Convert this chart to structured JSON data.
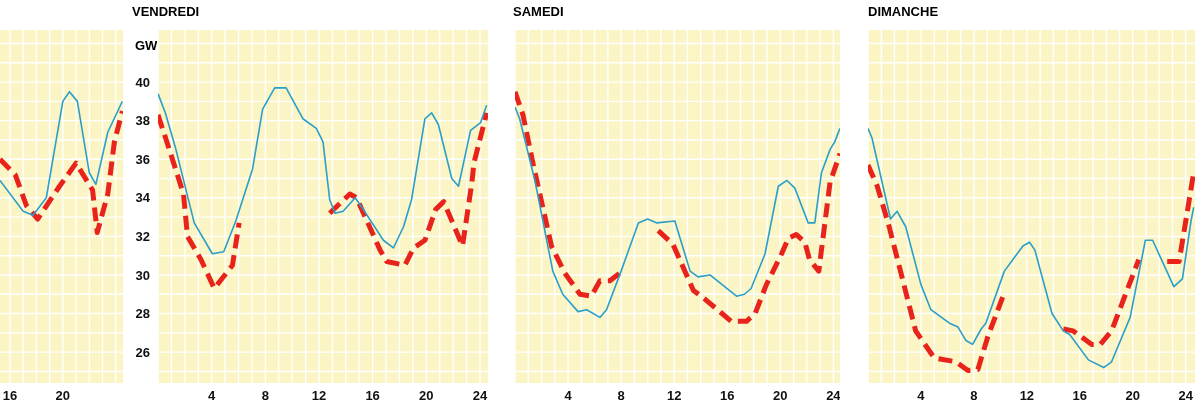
{
  "chart_data": [
    {
      "type": "line",
      "xlim": [
        15.25,
        24.55
      ],
      "ylim": [
        24.4,
        42.7
      ],
      "grid": true,
      "tick_labels": "x",
      "marker": "none",
      "xticks": [
        16,
        {
          "value": 17,
          "label": null
        },
        {
          "value": 18,
          "label": null
        },
        {
          "value": 19,
          "label": null
        },
        20,
        {
          "value": 21,
          "label": null
        },
        {
          "value": 22,
          "label": null
        },
        {
          "value": 23,
          "label": null
        },
        {
          "value": 24,
          "label": null
        }
      ],
      "yticks": [
        {
          "value": 25,
          "label": null
        },
        26,
        {
          "value": 27,
          "label": null
        },
        28,
        {
          "value": 29,
          "label": null
        },
        30,
        {
          "value": 31,
          "label": null
        },
        32,
        {
          "value": 33,
          "label": null
        },
        34,
        {
          "value": 35,
          "label": null
        },
        36,
        {
          "value": 37,
          "label": null
        },
        38,
        {
          "value": 39,
          "label": null
        },
        40,
        {
          "value": 41,
          "label": null
        },
        {
          "value": 42,
          "label": null
        }
      ],
      "series": [
        {
          "color": "#2a9fc9",
          "line_style": "solid",
          "x": [
            15.25,
            17.0,
            17.75,
            18.75,
            20.0,
            20.5,
            21.1,
            22.0,
            22.5,
            23.4,
            24.5
          ],
          "values": [
            34.9,
            33.3,
            33.1,
            34.0,
            39.0,
            39.5,
            39.0,
            35.3,
            34.7,
            37.4,
            39.0
          ]
        },
        {
          "color": "#e8231b",
          "line_style": "dashed",
          "x": [
            15.25,
            16.4,
            17.25,
            18.1,
            19.75,
            21.0,
            22.25,
            22.6,
            23.4,
            23.9,
            24.5
          ],
          "values": [
            36.0,
            35.2,
            33.6,
            32.9,
            34.6,
            35.8,
            34.4,
            32.2,
            34.2,
            36.9,
            38.5
          ]
        }
      ]
    },
    {
      "type": "line",
      "title": "VENDREDI",
      "ylabel": "GW",
      "xlim": [
        0,
        24.6
      ],
      "ylim": [
        24.4,
        42.7
      ],
      "grid": true,
      "marker": "none",
      "xticks": [
        {
          "value": 0,
          "label": null
        },
        {
          "value": 1,
          "label": null
        },
        {
          "value": 2,
          "label": null
        },
        {
          "value": 3,
          "label": null
        },
        4,
        {
          "value": 5,
          "label": null
        },
        {
          "value": 6,
          "label": null
        },
        {
          "value": 7,
          "label": null
        },
        8,
        {
          "value": 9,
          "label": null
        },
        {
          "value": 10,
          "label": null
        },
        {
          "value": 11,
          "label": null
        },
        12,
        {
          "value": 13,
          "label": null
        },
        {
          "value": 14,
          "label": null
        },
        {
          "value": 15,
          "label": null
        },
        16,
        {
          "value": 17,
          "label": null
        },
        {
          "value": 18,
          "label": null
        },
        {
          "value": 19,
          "label": null
        },
        20,
        {
          "value": 21,
          "label": null
        },
        {
          "value": 22,
          "label": null
        },
        {
          "value": 23,
          "label": null
        },
        24
      ],
      "yticks": [
        {
          "value": 25,
          "label": null
        },
        26,
        {
          "value": 27,
          "label": null
        },
        28,
        {
          "value": 29,
          "label": null
        },
        30,
        {
          "value": 31,
          "label": null
        },
        32,
        {
          "value": 33,
          "label": null
        },
        34,
        {
          "value": 35,
          "label": null
        },
        36,
        {
          "value": 37,
          "label": null
        },
        38,
        {
          "value": 39,
          "label": null
        },
        40,
        {
          "value": 41,
          "label": null
        },
        {
          "value": 42,
          "label": null
        }
      ],
      "series": [
        {
          "color": "#2a9fc9",
          "line_style": "solid",
          "x": [
            0,
            0.55,
            1.3,
            2.7,
            4.05,
            4.9,
            5.8,
            7.05,
            7.8,
            8.7,
            9.55,
            10.8,
            11.8,
            12.3,
            12.8,
            13.2,
            13.8,
            14.7,
            15.4,
            16.8,
            17.55,
            18.3,
            18.9,
            19.9,
            20.4,
            20.9,
            21.9,
            22.4,
            23.3,
            24.05,
            24.5
          ],
          "values": [
            39.4,
            38.4,
            36.6,
            32.7,
            31.1,
            31.2,
            32.8,
            35.5,
            38.6,
            39.7,
            39.7,
            38.1,
            37.6,
            36.9,
            33.9,
            33.2,
            33.3,
            34.0,
            33.3,
            31.8,
            31.4,
            32.5,
            33.9,
            38.1,
            38.4,
            37.8,
            35.0,
            34.6,
            37.5,
            37.9,
            38.8
          ]
        },
        {
          "color": "#e8231b",
          "line_style": "dashed",
          "x": [
            0,
            0.8,
            1.9,
            2.2,
            3.2,
            4.2,
            5.55,
            6.05,
            9.5,
            12.8,
            14.3,
            14.8,
            16.55,
            17.05,
            18.4,
            19.05,
            19.9,
            20.7,
            21.3,
            22.7,
            23.4,
            23.55,
            24.5
          ],
          "values": [
            38.3,
            36.6,
            34.2,
            32.0,
            30.8,
            29.3,
            30.5,
            32.7,
            null,
            33.2,
            34.2,
            34.0,
            31.3,
            30.7,
            30.5,
            31.4,
            31.8,
            33.4,
            33.8,
            31.5,
            34.8,
            35.8,
            38.4
          ]
        }
      ]
    },
    {
      "type": "line",
      "title": "SAMEDI",
      "xlim": [
        0,
        24.5
      ],
      "ylim": [
        24.4,
        42.7
      ],
      "grid": true,
      "tick_labels": "x",
      "marker": "none",
      "xticks": [
        {
          "value": 0,
          "label": null
        },
        {
          "value": 1,
          "label": null
        },
        {
          "value": 2,
          "label": null
        },
        {
          "value": 3,
          "label": null
        },
        4,
        {
          "value": 5,
          "label": null
        },
        {
          "value": 6,
          "label": null
        },
        {
          "value": 7,
          "label": null
        },
        8,
        {
          "value": 9,
          "label": null
        },
        {
          "value": 10,
          "label": null
        },
        {
          "value": 11,
          "label": null
        },
        12,
        {
          "value": 13,
          "label": null
        },
        {
          "value": 14,
          "label": null
        },
        {
          "value": 15,
          "label": null
        },
        16,
        {
          "value": 17,
          "label": null
        },
        {
          "value": 18,
          "label": null
        },
        {
          "value": 19,
          "label": null
        },
        20,
        {
          "value": 21,
          "label": null
        },
        {
          "value": 22,
          "label": null
        },
        {
          "value": 23,
          "label": null
        },
        24
      ],
      "yticks": [
        {
          "value": 25,
          "label": null
        },
        26,
        {
          "value": 27,
          "label": null
        },
        28,
        {
          "value": 29,
          "label": null
        },
        30,
        {
          "value": 31,
          "label": null
        },
        32,
        {
          "value": 33,
          "label": null
        },
        34,
        {
          "value": 35,
          "label": null
        },
        36,
        {
          "value": 37,
          "label": null
        },
        38,
        {
          "value": 39,
          "label": null
        },
        40,
        {
          "value": 41,
          "label": null
        },
        {
          "value": 42,
          "label": null
        }
      ],
      "series": [
        {
          "color": "#2a9fc9",
          "line_style": "solid",
          "x": [
            0,
            0.35,
            1.5,
            2.85,
            3.6,
            4.75,
            5.4,
            6.4,
            6.9,
            8.0,
            9.3,
            10.0,
            10.7,
            12.05,
            13.2,
            13.8,
            14.7,
            16.7,
            17.3,
            17.8,
            18.85,
            19.85,
            20.5,
            21.1,
            22.1,
            22.6,
            23.1,
            23.75,
            24.1,
            24.5
          ],
          "values": [
            38.7,
            38.1,
            34.9,
            30.2,
            29.0,
            28.1,
            28.2,
            27.8,
            28.2,
            30.2,
            32.7,
            32.9,
            32.7,
            32.8,
            30.2,
            29.9,
            30.0,
            28.9,
            29.0,
            29.3,
            31.1,
            34.6,
            34.9,
            34.5,
            32.7,
            32.7,
            35.3,
            36.5,
            36.9,
            37.6
          ]
        },
        {
          "color": "#e8231b",
          "line_style": "dashed",
          "x": [
            0,
            0.6,
            1.35,
            2.75,
            3.75,
            4.9,
            5.75,
            6.4,
            7.15,
            7.9,
            9.3,
            10.8,
            11.9,
            13.45,
            14.4,
            16.3,
            17.45,
            18.1,
            18.95,
            20.1,
            20.6,
            21.2,
            21.85,
            22.2,
            22.9,
            23.75,
            24.5
          ],
          "values": [
            39.5,
            38.3,
            35.8,
            31.5,
            30.1,
            29.0,
            28.9,
            29.7,
            29.7,
            30.1,
            null,
            32.3,
            31.6,
            29.2,
            28.7,
            27.6,
            27.6,
            28.0,
            29.5,
            31.1,
            31.9,
            32.1,
            31.7,
            30.8,
            30.2,
            34.8,
            36.3
          ]
        }
      ]
    },
    {
      "type": "line",
      "title": "DIMANCHE",
      "xlim": [
        0,
        24.7
      ],
      "ylim": [
        24.4,
        42.7
      ],
      "grid": true,
      "tick_labels": "x",
      "marker": "none",
      "xticks": [
        {
          "value": 0,
          "label": null
        },
        {
          "value": 1,
          "label": null
        },
        {
          "value": 2,
          "label": null
        },
        {
          "value": 3,
          "label": null
        },
        4,
        {
          "value": 5,
          "label": null
        },
        {
          "value": 6,
          "label": null
        },
        {
          "value": 7,
          "label": null
        },
        8,
        {
          "value": 9,
          "label": null
        },
        {
          "value": 10,
          "label": null
        },
        {
          "value": 11,
          "label": null
        },
        12,
        {
          "value": 13,
          "label": null
        },
        {
          "value": 14,
          "label": null
        },
        {
          "value": 15,
          "label": null
        },
        16,
        {
          "value": 17,
          "label": null
        },
        {
          "value": 18,
          "label": null
        },
        {
          "value": 19,
          "label": null
        },
        20,
        {
          "value": 21,
          "label": null
        },
        {
          "value": 22,
          "label": null
        },
        {
          "value": 23,
          "label": null
        },
        24
      ],
      "yticks": [
        {
          "value": 25,
          "label": null
        },
        26,
        {
          "value": 27,
          "label": null
        },
        28,
        {
          "value": 29,
          "label": null
        },
        30,
        {
          "value": 31,
          "label": null
        },
        32,
        {
          "value": 33,
          "label": null
        },
        34,
        {
          "value": 35,
          "label": null
        },
        36,
        {
          "value": 37,
          "label": null
        },
        38,
        {
          "value": 39,
          "label": null
        },
        40,
        {
          "value": 41,
          "label": null
        },
        {
          "value": 42,
          "label": null
        }
      ],
      "series": [
        {
          "color": "#2a9fc9",
          "line_style": "solid",
          "x": [
            0,
            0.3,
            1.7,
            2.2,
            2.85,
            4.0,
            4.75,
            6.15,
            6.8,
            7.4,
            7.9,
            8.55,
            8.9,
            10.3,
            11.7,
            12.2,
            12.6,
            13.9,
            14.75,
            15.25,
            16.65,
            17.8,
            18.4,
            19.8,
            20.95,
            21.5,
            23.1,
            23.75,
            24.4,
            24.6
          ],
          "values": [
            37.6,
            37.1,
            32.9,
            33.3,
            32.5,
            29.5,
            28.2,
            27.5,
            27.3,
            26.6,
            26.4,
            27.2,
            27.5,
            30.2,
            31.5,
            31.7,
            31.3,
            28.0,
            27.1,
            26.9,
            25.6,
            25.2,
            25.5,
            27.8,
            31.8,
            31.8,
            29.4,
            29.8,
            32.8,
            33.5
          ]
        },
        {
          "color": "#e8231b",
          "line_style": "dashed",
          "x": [
            0,
            0.7,
            1.6,
            3.6,
            5.0,
            6.65,
            7.55,
            8.3,
            9.05,
            10.2,
            12.5,
            14.75,
            15.5,
            16.9,
            17.55,
            18.4,
            20.45,
            21.5,
            22.6,
            23.5,
            24.6
          ],
          "values": [
            35.7,
            34.6,
            32.5,
            27.1,
            25.7,
            25.5,
            25.05,
            25.1,
            26.8,
            28.9,
            null,
            27.2,
            27.1,
            26.4,
            26.4,
            27.1,
            30.8,
            null,
            30.7,
            30.7,
            35.3
          ]
        }
      ]
    }
  ]
}
